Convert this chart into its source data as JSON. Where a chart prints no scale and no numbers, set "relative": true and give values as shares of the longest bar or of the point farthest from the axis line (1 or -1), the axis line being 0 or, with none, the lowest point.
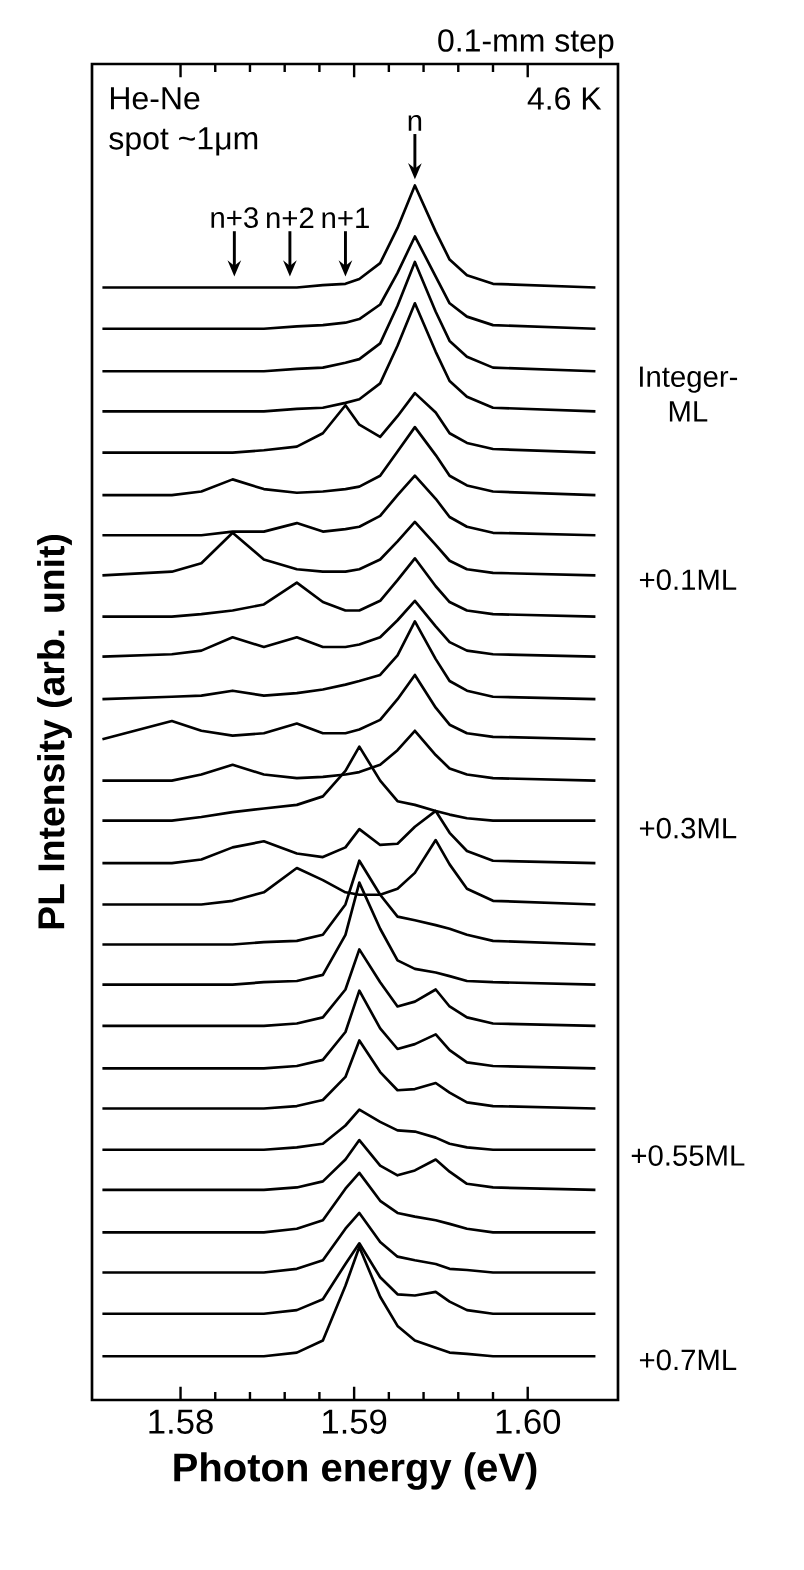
{
  "chart_data": {
    "type": "line",
    "relative": true,
    "xlabel": "Photon energy (eV)",
    "ylabel": "PL Intensity (arb. unit)",
    "color": "#000000",
    "xlim": [
      1.5749,
      1.6052
    ],
    "xticks": [
      1.58,
      1.59,
      {
        "value": 1.6,
        "label": "1.60"
      }
    ],
    "x": [
      1.5755,
      1.5795,
      1.5812,
      1.583,
      1.5848,
      1.5867,
      1.5882,
      1.5895,
      1.5903,
      1.5915,
      1.5925,
      1.5935,
      1.5947,
      1.5955,
      1.5965,
      1.598,
      1.6039
    ],
    "annotations": [
      "0.1-mm step",
      "He-Ne",
      "spot ~1μm",
      "4.6 K",
      {
        "text": "n",
        "x": 1.5935,
        "y": 1.005
      },
      {
        "text": "n+1",
        "x": 1.5895,
        "y": 0.925
      },
      {
        "text": "n+2",
        "x": 1.5863,
        "y": 0.925
      },
      {
        "text": "n+3",
        "x": 1.5831,
        "y": 0.925
      },
      "Integer-ML",
      "+0.1ML",
      "+0.3ML",
      "+0.55ML",
      "+0.7ML"
    ],
    "series": [
      {
        "values": [
          0.916,
          0.916,
          0.916,
          0.916,
          0.916,
          0.916,
          0.918,
          0.919,
          0.923,
          0.936,
          0.965,
          1.0,
          0.962,
          0.939,
          0.926,
          0.919,
          0.916
        ]
      },
      {
        "values": [
          0.882,
          0.882,
          0.882,
          0.882,
          0.882,
          0.884,
          0.885,
          0.887,
          0.89,
          0.902,
          0.928,
          0.958,
          0.925,
          0.903,
          0.892,
          0.885,
          0.882
        ]
      },
      {
        "values": [
          0.847,
          0.847,
          0.847,
          0.847,
          0.847,
          0.849,
          0.85,
          0.854,
          0.857,
          0.87,
          0.901,
          0.937,
          0.896,
          0.872,
          0.859,
          0.85,
          0.847
        ]
      },
      {
        "values": [
          0.814,
          0.814,
          0.814,
          0.814,
          0.814,
          0.816,
          0.817,
          0.821,
          0.824,
          0.837,
          0.868,
          0.903,
          0.863,
          0.839,
          0.826,
          0.817,
          0.814
        ]
      },
      {
        "values": [
          0.78,
          0.78,
          0.78,
          0.78,
          0.782,
          0.785,
          0.796,
          0.819,
          0.803,
          0.793,
          0.81,
          0.829,
          0.813,
          0.796,
          0.788,
          0.783,
          0.78
        ]
      },
      {
        "values": [
          0.745,
          0.745,
          0.748,
          0.758,
          0.75,
          0.747,
          0.748,
          0.75,
          0.752,
          0.761,
          0.781,
          0.801,
          0.778,
          0.761,
          0.753,
          0.748,
          0.745
        ]
      },
      {
        "values": [
          0.712,
          0.712,
          0.712,
          0.715,
          0.715,
          0.722,
          0.715,
          0.717,
          0.719,
          0.728,
          0.745,
          0.761,
          0.742,
          0.727,
          0.719,
          0.714,
          0.712
        ]
      },
      {
        "values": [
          0.679,
          0.682,
          0.689,
          0.714,
          0.692,
          0.684,
          0.682,
          0.682,
          0.684,
          0.692,
          0.707,
          0.723,
          0.704,
          0.691,
          0.684,
          0.681,
          0.679
        ]
      },
      {
        "values": [
          0.645,
          0.645,
          0.647,
          0.65,
          0.655,
          0.673,
          0.657,
          0.65,
          0.65,
          0.658,
          0.675,
          0.693,
          0.67,
          0.657,
          0.65,
          0.647,
          0.645
        ]
      },
      {
        "values": [
          0.612,
          0.614,
          0.617,
          0.628,
          0.62,
          0.628,
          0.62,
          0.62,
          0.622,
          0.628,
          0.642,
          0.658,
          0.637,
          0.624,
          0.617,
          0.614,
          0.612
        ]
      },
      {
        "values": [
          0.577,
          0.579,
          0.58,
          0.584,
          0.58,
          0.582,
          0.585,
          0.589,
          0.592,
          0.597,
          0.613,
          0.641,
          0.61,
          0.592,
          0.584,
          0.579,
          0.577
        ]
      },
      {
        "values": [
          0.544,
          0.559,
          0.551,
          0.547,
          0.549,
          0.557,
          0.549,
          0.549,
          0.552,
          0.56,
          0.577,
          0.597,
          0.57,
          0.556,
          0.549,
          0.546,
          0.544
        ]
      },
      {
        "values": [
          0.51,
          0.51,
          0.515,
          0.523,
          0.515,
          0.512,
          0.513,
          0.515,
          0.517,
          0.523,
          0.535,
          0.551,
          0.531,
          0.52,
          0.515,
          0.512,
          0.51
        ]
      },
      {
        "values": [
          0.477,
          0.477,
          0.48,
          0.484,
          0.487,
          0.49,
          0.497,
          0.518,
          0.538,
          0.51,
          0.493,
          0.49,
          0.485,
          0.482,
          0.479,
          0.477,
          0.477
        ]
      },
      {
        "values": [
          0.442,
          0.442,
          0.445,
          0.455,
          0.46,
          0.45,
          0.447,
          0.455,
          0.47,
          0.457,
          0.458,
          0.472,
          0.485,
          0.467,
          0.452,
          0.444,
          0.442
        ]
      },
      {
        "values": [
          0.408,
          0.408,
          0.408,
          0.411,
          0.418,
          0.438,
          0.428,
          0.418,
          0.416,
          0.416,
          0.421,
          0.434,
          0.461,
          0.441,
          0.421,
          0.411,
          0.408
        ]
      },
      {
        "values": [
          0.375,
          0.375,
          0.375,
          0.375,
          0.377,
          0.378,
          0.383,
          0.408,
          0.444,
          0.416,
          0.398,
          0.395,
          0.391,
          0.388,
          0.383,
          0.378,
          0.375
        ]
      },
      {
        "values": [
          0.342,
          0.342,
          0.342,
          0.342,
          0.344,
          0.345,
          0.35,
          0.383,
          0.426,
          0.388,
          0.362,
          0.355,
          0.352,
          0.349,
          0.345,
          0.344,
          0.342
        ]
      },
      {
        "values": [
          0.308,
          0.308,
          0.308,
          0.308,
          0.308,
          0.31,
          0.315,
          0.338,
          0.371,
          0.344,
          0.324,
          0.328,
          0.338,
          0.324,
          0.315,
          0.31,
          0.308
        ]
      },
      {
        "values": [
          0.273,
          0.273,
          0.273,
          0.273,
          0.273,
          0.275,
          0.28,
          0.303,
          0.337,
          0.306,
          0.289,
          0.293,
          0.301,
          0.288,
          0.278,
          0.275,
          0.273
        ]
      },
      {
        "values": [
          0.24,
          0.24,
          0.24,
          0.24,
          0.24,
          0.242,
          0.247,
          0.266,
          0.296,
          0.27,
          0.255,
          0.256,
          0.261,
          0.253,
          0.245,
          0.242,
          0.24
        ]
      },
      {
        "values": [
          0.206,
          0.206,
          0.206,
          0.206,
          0.206,
          0.208,
          0.211,
          0.226,
          0.239,
          0.229,
          0.222,
          0.221,
          0.216,
          0.211,
          0.208,
          0.206,
          0.206
        ]
      },
      {
        "values": [
          0.173,
          0.173,
          0.173,
          0.173,
          0.173,
          0.175,
          0.18,
          0.198,
          0.214,
          0.193,
          0.185,
          0.189,
          0.198,
          0.188,
          0.178,
          0.175,
          0.173
        ]
      },
      {
        "values": [
          0.138,
          0.138,
          0.138,
          0.138,
          0.138,
          0.141,
          0.148,
          0.174,
          0.187,
          0.164,
          0.154,
          0.151,
          0.148,
          0.145,
          0.141,
          0.138,
          0.138
        ]
      },
      {
        "values": [
          0.105,
          0.105,
          0.105,
          0.105,
          0.105,
          0.108,
          0.115,
          0.141,
          0.154,
          0.13,
          0.118,
          0.115,
          0.112,
          0.108,
          0.107,
          0.105,
          0.105
        ]
      },
      {
        "values": [
          0.071,
          0.071,
          0.071,
          0.071,
          0.071,
          0.074,
          0.083,
          0.112,
          0.129,
          0.101,
          0.087,
          0.086,
          0.089,
          0.081,
          0.074,
          0.071,
          0.071
        ]
      },
      {
        "values": [
          0.036,
          0.036,
          0.036,
          0.036,
          0.036,
          0.039,
          0.049,
          0.094,
          0.126,
          0.085,
          0.061,
          0.049,
          0.043,
          0.039,
          0.038,
          0.036,
          0.036
        ]
      }
    ]
  }
}
